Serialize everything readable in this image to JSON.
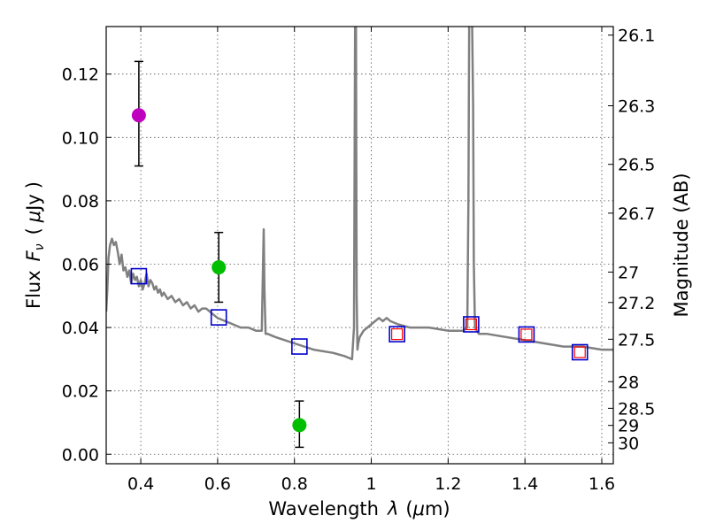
{
  "chart_data": {
    "type": "scatter",
    "xlabel": "Wavelength",
    "xlabel_symbol": "λ",
    "xlabel_unit_open": "(",
    "xlabel_unit": "μ",
    "xlabel_unit_rest": "m)",
    "ylabel": "Flux",
    "ylabel_symbol": "F",
    "ylabel_symbol_sub": "ν",
    "ylabel_unit_open": "(",
    "ylabel_unit": "μ",
    "ylabel_unit_rest": "Jy",
    "ylabel_unit_close": ")",
    "y2label": "Magnitude (AB)",
    "xlim": [
      0.31,
      1.63
    ],
    "ylim": [
      -0.003,
      0.135
    ],
    "grid": true,
    "x_ticks": [
      0.4,
      0.6,
      0.8,
      1.0,
      1.2,
      1.4,
      1.6
    ],
    "x_tick_labels": [
      "0.4",
      "0.6",
      "0.8",
      "1",
      "1.2",
      "1.4",
      "1.6"
    ],
    "y_ticks": [
      0.0,
      0.02,
      0.04,
      0.06,
      0.08,
      0.1,
      0.12
    ],
    "y_tick_labels": [
      "0.00",
      "0.02",
      "0.04",
      "0.06",
      "0.08",
      "0.10",
      "0.12"
    ],
    "y2_ticks": [
      {
        "label": "26.1",
        "flux": 0.1323
      },
      {
        "label": "26.3",
        "flux": 0.11
      },
      {
        "label": "26.5",
        "flux": 0.0915
      },
      {
        "label": "26.7",
        "flux": 0.0761
      },
      {
        "label": "27",
        "flux": 0.0575
      },
      {
        "label": "27.2",
        "flux": 0.0479
      },
      {
        "label": "27.5",
        "flux": 0.0363
      },
      {
        "label": "28",
        "flux": 0.0229
      },
      {
        "label": "28.5",
        "flux": 0.0145
      },
      {
        "label": "29",
        "flux": 0.0091
      },
      {
        "label": "30",
        "flux": 0.0036
      }
    ],
    "colors": {
      "sed": "#808080",
      "magenta": "#bf00bf",
      "green": "#00bf00",
      "blue_square": "#0000cc",
      "red_square": "#ff0000"
    },
    "series": [
      {
        "name": "model_sed",
        "kind": "line",
        "x": [
          0.31,
          0.313,
          0.316,
          0.32,
          0.325,
          0.33,
          0.335,
          0.34,
          0.345,
          0.35,
          0.355,
          0.36,
          0.365,
          0.37,
          0.375,
          0.38,
          0.385,
          0.39,
          0.395,
          0.4,
          0.405,
          0.41,
          0.415,
          0.42,
          0.425,
          0.43,
          0.435,
          0.44,
          0.445,
          0.45,
          0.455,
          0.46,
          0.47,
          0.48,
          0.49,
          0.5,
          0.51,
          0.52,
          0.53,
          0.54,
          0.55,
          0.56,
          0.57,
          0.58,
          0.59,
          0.6,
          0.62,
          0.64,
          0.66,
          0.68,
          0.7,
          0.715,
          0.718,
          0.72,
          0.722,
          0.725,
          0.73,
          0.75,
          0.8,
          0.85,
          0.9,
          0.93,
          0.95,
          0.955,
          0.958,
          0.96,
          0.962,
          0.964,
          0.966,
          0.968,
          0.97,
          0.975,
          0.98,
          0.99,
          1.0,
          1.01,
          1.02,
          1.03,
          1.04,
          1.05,
          1.07,
          1.1,
          1.15,
          1.2,
          1.24,
          1.25,
          1.253,
          1.255,
          1.258,
          1.262,
          1.265,
          1.267,
          1.27,
          1.275,
          1.28,
          1.3,
          1.35,
          1.4,
          1.45,
          1.5,
          1.55,
          1.6,
          1.63
        ],
        "y": [
          0.045,
          0.052,
          0.062,
          0.066,
          0.068,
          0.066,
          0.067,
          0.064,
          0.06,
          0.063,
          0.058,
          0.059,
          0.056,
          0.058,
          0.054,
          0.057,
          0.055,
          0.056,
          0.053,
          0.055,
          0.052,
          0.054,
          0.057,
          0.053,
          0.055,
          0.054,
          0.052,
          0.053,
          0.051,
          0.052,
          0.05,
          0.051,
          0.049,
          0.05,
          0.048,
          0.049,
          0.047,
          0.048,
          0.046,
          0.047,
          0.045,
          0.046,
          0.046,
          0.045,
          0.044,
          0.043,
          0.042,
          0.041,
          0.04,
          0.04,
          0.039,
          0.039,
          0.058,
          0.071,
          0.052,
          0.038,
          0.038,
          0.037,
          0.035,
          0.033,
          0.032,
          0.031,
          0.03,
          0.04,
          0.14,
          0.14,
          0.05,
          0.033,
          0.035,
          0.036,
          0.037,
          0.038,
          0.039,
          0.04,
          0.041,
          0.042,
          0.043,
          0.042,
          0.043,
          0.042,
          0.041,
          0.04,
          0.04,
          0.039,
          0.039,
          0.04,
          0.08,
          0.14,
          0.14,
          0.14,
          0.11,
          0.06,
          0.04,
          0.039,
          0.038,
          0.038,
          0.037,
          0.036,
          0.035,
          0.034,
          0.034,
          0.033,
          0.033
        ]
      },
      {
        "name": "observed_magenta",
        "kind": "point",
        "x": [
          0.395
        ],
        "y": [
          0.107
        ],
        "yerr_low": [
          0.091
        ],
        "yerr_high": [
          0.124
        ]
      },
      {
        "name": "observed_green",
        "kind": "point",
        "x": [
          0.603,
          0.813
        ],
        "y": [
          0.059,
          0.0092
        ],
        "yerr_low": [
          0.048,
          0.0022
        ],
        "yerr_high": [
          0.07,
          0.0168
        ]
      },
      {
        "name": "model_bands_blue",
        "kind": "square",
        "x": [
          0.395,
          0.603,
          0.813,
          1.067,
          1.26,
          1.404,
          1.543
        ],
        "y": [
          0.0562,
          0.0432,
          0.034,
          0.0379,
          0.041,
          0.0378,
          0.0322
        ]
      },
      {
        "name": "model_bands_red",
        "kind": "square",
        "x": [
          1.067,
          1.26,
          1.404,
          1.543
        ],
        "y": [
          0.0379,
          0.041,
          0.0378,
          0.0322
        ]
      }
    ]
  }
}
